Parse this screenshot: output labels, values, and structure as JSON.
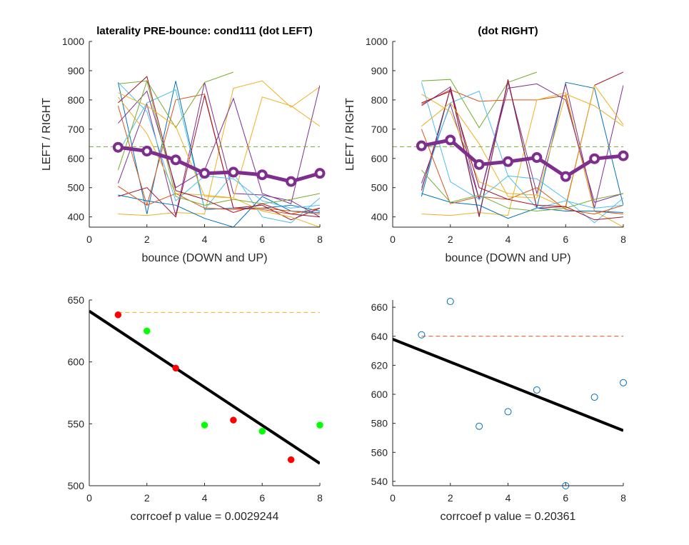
{
  "figure": {
    "background": "#ffffff",
    "axis_color": "#262626"
  },
  "chart_data": [
    {
      "id": "tl",
      "type": "line",
      "title": "laterality PRE-bounce: cond111 (dot LEFT)",
      "xlabel": "bounce (DOWN and UP)",
      "ylabel": "LEFT / RIGHT",
      "xlim": [
        0,
        8
      ],
      "ylim": [
        365,
        1000
      ],
      "xticks": [
        0,
        2,
        4,
        6,
        8
      ],
      "yticks": [
        400,
        500,
        600,
        700,
        800,
        900,
        1000
      ],
      "x": [
        1,
        2,
        3,
        4,
        5,
        6,
        7,
        8
      ],
      "reference_line": {
        "y": 640,
        "color": "#77ac30",
        "style": "dashed"
      },
      "mean_series": {
        "values": [
          638,
          625,
          595,
          549,
          553,
          544,
          521,
          549
        ],
        "color": "#7e2f8e"
      },
      "trials": [
        {
          "color": "#0072bd",
          "values": [
            860,
            410,
            865,
            425,
            430,
            430,
            440,
            420
          ]
        },
        {
          "color": "#d95319",
          "values": [
            780,
            440,
            800,
            820,
            430,
            425,
            410,
            430
          ]
        },
        {
          "color": "#edb120",
          "values": [
            410,
            405,
            415,
            410,
            840,
            865,
            775,
            845
          ]
        },
        {
          "color": "#7e2f8e",
          "values": [
            515,
            785,
            405,
            860,
            480,
            475,
            455,
            400
          ]
        },
        {
          "color": "#77ac30",
          "values": [
            855,
            865,
            705,
            860,
            895,
            null,
            null,
            null
          ]
        },
        {
          "color": "#4dbeee",
          "values": [
            620,
            790,
            835,
            425,
            550,
            400,
            380,
            465
          ]
        },
        {
          "color": "#a2142f",
          "values": [
            470,
            500,
            400,
            815,
            430,
            440,
            390,
            430
          ]
        },
        {
          "color": "#0072bd",
          "values": [
            475,
            455,
            440,
            395,
            365,
            470,
            420,
            415
          ]
        },
        {
          "color": "#d95319",
          "values": [
            505,
            440,
            480,
            430,
            425,
            430,
            420,
            410
          ]
        },
        {
          "color": "#edb120",
          "values": [
            810,
            685,
            480,
            475,
            465,
            420,
            400,
            365
          ]
        },
        {
          "color": "#7e2f8e",
          "values": [
            720,
            830,
            500,
            560,
            805,
            480,
            445,
            850
          ]
        },
        {
          "color": "#77ac30",
          "values": [
            560,
            865,
            470,
            440,
            460,
            445,
            460,
            480
          ]
        },
        {
          "color": "#4dbeee",
          "values": [
            860,
            760,
            455,
            540,
            530,
            455,
            430,
            440
          ]
        },
        {
          "color": "#a2142f",
          "values": [
            790,
            880,
            490,
            460,
            415,
            445,
            410,
            400
          ]
        },
        {
          "color": "#edb120",
          "values": [
            825,
            780,
            710,
            470,
            465,
            810,
            780,
            710
          ]
        }
      ]
    },
    {
      "id": "tr",
      "type": "line",
      "title": "(dot RIGHT)",
      "xlabel": "bounce (DOWN and UP)",
      "ylabel": "LEFT / RIGHT",
      "xlim": [
        0,
        8
      ],
      "ylim": [
        365,
        1000
      ],
      "xticks": [
        0,
        2,
        4,
        6,
        8
      ],
      "yticks": [
        400,
        500,
        600,
        700,
        800,
        900,
        1000
      ],
      "x": [
        1,
        2,
        3,
        4,
        5,
        6,
        7,
        8
      ],
      "reference_line": {
        "y": 640,
        "color": "#77ac30",
        "style": "dashed"
      },
      "mean_series": {
        "values": [
          643,
          663,
          579,
          589,
          603,
          538,
          599,
          609
        ],
        "color": "#7e2f8e"
      },
      "trials": [
        {
          "color": "#0072bd",
          "values": [
            470,
            840,
            405,
            865,
            430,
            860,
            840,
            440
          ]
        },
        {
          "color": "#d95319",
          "values": [
            785,
            835,
            795,
            800,
            800,
            815,
            420,
            410
          ]
        },
        {
          "color": "#edb120",
          "values": [
            410,
            405,
            415,
            405,
            800,
            825,
            420,
            365
          ]
        },
        {
          "color": "#7e2f8e",
          "values": [
            515,
            785,
            460,
            860,
            480,
            855,
            430,
            850
          ]
        },
        {
          "color": "#77ac30",
          "values": [
            865,
            870,
            705,
            860,
            895,
            null,
            null,
            null
          ]
        },
        {
          "color": "#4dbeee",
          "values": [
            500,
            790,
            830,
            540,
            530,
            460,
            380,
            465
          ]
        },
        {
          "color": "#a2142f",
          "values": [
            490,
            840,
            400,
            870,
            430,
            435,
            850,
            895
          ]
        },
        {
          "color": "#0072bd",
          "values": [
            480,
            450,
            440,
            395,
            430,
            420,
            420,
            415
          ]
        },
        {
          "color": "#d95319",
          "values": [
            700,
            445,
            470,
            460,
            500,
            425,
            410,
            440
          ]
        },
        {
          "color": "#edb120",
          "values": [
            820,
            760,
            520,
            480,
            475,
            430,
            850,
            715
          ]
        },
        {
          "color": "#7e2f8e",
          "values": [
            780,
            845,
            460,
            840,
            855,
            800,
            450,
            480
          ]
        },
        {
          "color": "#77ac30",
          "values": [
            560,
            450,
            475,
            430,
            420,
            430,
            460,
            480
          ]
        },
        {
          "color": "#4dbeee",
          "values": [
            860,
            520,
            460,
            540,
            430,
            455,
            430,
            440
          ]
        },
        {
          "color": "#a2142f",
          "values": [
            790,
            830,
            500,
            460,
            440,
            435,
            390,
            400
          ]
        },
        {
          "color": "#edb120",
          "values": [
            710,
            790,
            650,
            470,
            465,
            820,
            780,
            710
          ]
        }
      ]
    },
    {
      "id": "bl",
      "type": "scatter",
      "title": "",
      "xlabel": "corrcoef  p value = 0.0029244",
      "ylabel": "",
      "xlim": [
        0,
        8
      ],
      "ylim": [
        500,
        650
      ],
      "xticks": [
        0,
        2,
        4,
        6,
        8
      ],
      "yticks": [
        500,
        550,
        600,
        650
      ],
      "reference_line": {
        "y": 640,
        "x_range": [
          1,
          8
        ],
        "color": "#edb120",
        "style": "dashed"
      },
      "fit_line": {
        "x": [
          0,
          8
        ],
        "y": [
          641,
          518
        ],
        "color": "#000000"
      },
      "points": [
        {
          "x": 1,
          "y": 638,
          "color": "#ff0000"
        },
        {
          "x": 2,
          "y": 625,
          "color": "#00ff00"
        },
        {
          "x": 3,
          "y": 595,
          "color": "#ff0000"
        },
        {
          "x": 4,
          "y": 549,
          "color": "#00ff00"
        },
        {
          "x": 5,
          "y": 553,
          "color": "#ff0000"
        },
        {
          "x": 6,
          "y": 544,
          "color": "#00ff00"
        },
        {
          "x": 7,
          "y": 521,
          "color": "#ff0000"
        },
        {
          "x": 8,
          "y": 549,
          "color": "#00ff00"
        }
      ]
    },
    {
      "id": "br",
      "type": "scatter",
      "title": "",
      "xlabel": "corrcoef  p value = 0.20361",
      "ylabel": "",
      "xlim": [
        0,
        8
      ],
      "ylim": [
        537,
        665
      ],
      "xticks": [
        0,
        2,
        4,
        6,
        8
      ],
      "yticks": [
        540,
        560,
        580,
        600,
        620,
        640,
        660
      ],
      "reference_line": {
        "y": 640,
        "x_range": [
          1,
          8
        ],
        "color": "#d95319",
        "style": "dashed"
      },
      "fit_line": {
        "x": [
          0,
          8
        ],
        "y": [
          638,
          575
        ],
        "color": "#000000"
      },
      "marker": "open-circle",
      "points": [
        {
          "x": 1,
          "y": 641,
          "color": "#0072bd"
        },
        {
          "x": 2,
          "y": 664,
          "color": "#0072bd"
        },
        {
          "x": 3,
          "y": 578,
          "color": "#0072bd"
        },
        {
          "x": 4,
          "y": 588,
          "color": "#0072bd"
        },
        {
          "x": 5,
          "y": 603,
          "color": "#0072bd"
        },
        {
          "x": 6,
          "y": 537,
          "color": "#0072bd"
        },
        {
          "x": 7,
          "y": 598,
          "color": "#0072bd"
        },
        {
          "x": 8,
          "y": 608,
          "color": "#0072bd"
        }
      ]
    }
  ]
}
